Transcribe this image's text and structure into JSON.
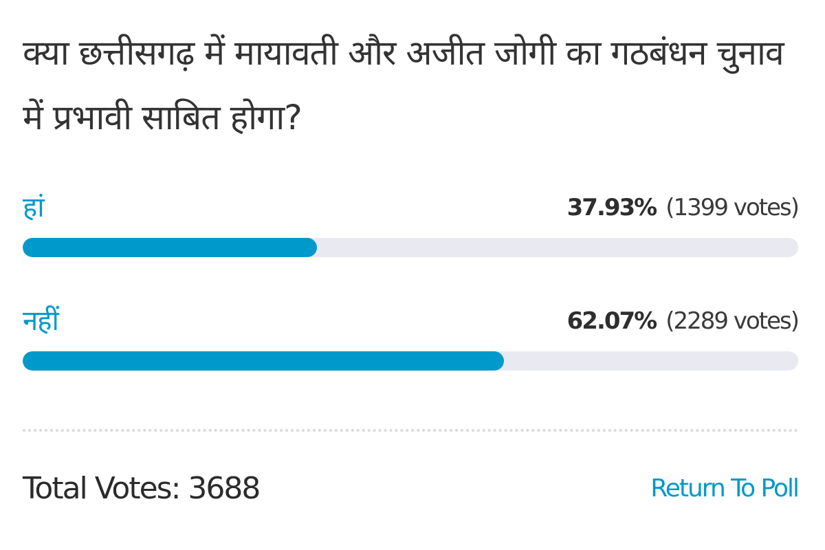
{
  "poll": {
    "question": "क्या छत्तीसगढ़ में मायावती और अजीत जोगी का गठबंधन चुनाव में प्रभावी साबित होगा?",
    "answers": [
      {
        "label": "हां",
        "percent_text": "37.93%",
        "votes_text": "(1399 votes)",
        "percent": 37.93
      },
      {
        "label": "नहीं",
        "percent_text": "62.07%",
        "votes_text": "(2289 votes)",
        "percent": 62.07
      }
    ],
    "total_votes_text": "Total Votes: 3688",
    "return_link_label": "Return To Poll"
  },
  "colors": {
    "accent": "#0099cc",
    "track": "#e8e9f1",
    "text": "#2b2b2b"
  }
}
